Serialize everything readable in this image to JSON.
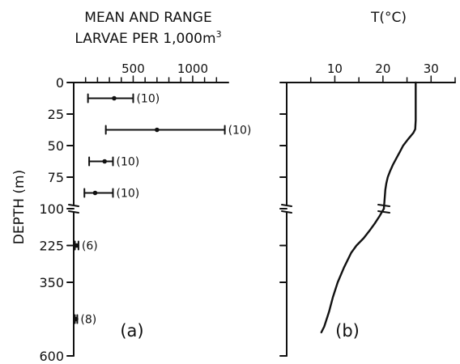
{
  "chart_data": [
    {
      "panel": "(a)",
      "type": "scatter",
      "title_line1": "MEAN AND RANGE",
      "title_line2": "LARVAE PER 1,000m",
      "title_superscript": "3",
      "ylabel": "DEPTH (m)",
      "xlabel": "",
      "x_ticks": [
        500,
        1000
      ],
      "y_tick_labels_upper": [
        "0",
        "25",
        "50",
        "75",
        "100"
      ],
      "y_tick_labels_lower": [
        "225",
        "350",
        "600"
      ],
      "ylim_upper": [
        0,
        100
      ],
      "ylim_lower": [
        100,
        600
      ],
      "axis_break_at_depth": 100,
      "points": [
        {
          "depth": 12.5,
          "mean": 340,
          "min": 120,
          "max": 500,
          "n_label": "(10)"
        },
        {
          "depth": 37.5,
          "mean": 700,
          "min": 270,
          "max": 1270,
          "n_label": "(10)"
        },
        {
          "depth": 62.5,
          "mean": 260,
          "min": 130,
          "max": 330,
          "n_label": "(10)"
        },
        {
          "depth": 87.5,
          "mean": 180,
          "min": 90,
          "max": 330,
          "n_label": "(10)"
        },
        {
          "depth": 225,
          "mean": 25,
          "min": 10,
          "max": 40,
          "n_label": "(6)"
        },
        {
          "depth": 475,
          "mean": 20,
          "min": 10,
          "max": 30,
          "n_label": "(8)"
        }
      ]
    },
    {
      "panel": "(b)",
      "type": "line",
      "title": "T(°C)",
      "xlabel": "",
      "ylabel": "",
      "x_ticks": [
        10,
        20,
        30
      ],
      "xlim": [
        0,
        35
      ],
      "ylim_upper": [
        0,
        100
      ],
      "ylim_lower": [
        100,
        600
      ],
      "axis_break_at_depth": 100,
      "series": [
        {
          "depth": [
            5,
            10,
            20,
            30,
            37,
            40,
            45,
            50,
            55,
            60,
            65,
            70,
            75,
            80,
            85,
            90,
            95,
            100,
            125,
            150,
            175,
            200,
            225,
            250,
            300,
            350,
            400,
            450,
            500,
            520
          ],
          "temperature": [
            26.8,
            26.8,
            26.8,
            26.8,
            26.7,
            26.3,
            25.2,
            24.2,
            23.5,
            22.8,
            22.1,
            21.5,
            21.0,
            20.7,
            20.5,
            20.4,
            20.3,
            20.2,
            19.3,
            18.3,
            17.2,
            16.0,
            14.5,
            13.4,
            11.9,
            10.6,
            9.6,
            8.8,
            7.8,
            7.2
          ]
        }
      ]
    }
  ]
}
